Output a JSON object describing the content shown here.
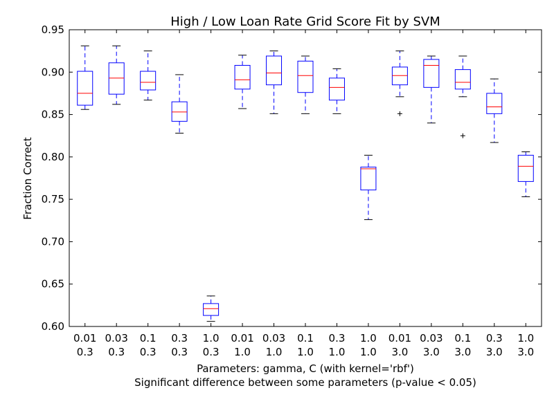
{
  "chart_data": {
    "type": "box",
    "title": "High / Low Loan Rate Grid Score Fit by SVM",
    "xlabel": "Parameters: gamma, C (with kernel='rbf')",
    "note": "Significant difference between some parameters (p-value < 0.05)",
    "ylabel": "Fraction Correct",
    "ylim": [
      0.6,
      0.95
    ],
    "yticks": [
      "0.60",
      "0.65",
      "0.70",
      "0.75",
      "0.80",
      "0.85",
      "0.90",
      "0.95"
    ],
    "colors": {
      "box": "#0000ff",
      "median": "#ff0000",
      "flier": "#000000"
    },
    "categories": [
      {
        "gamma": "0.01",
        "C": "0.3",
        "whislo": 0.856,
        "q1": 0.861,
        "med": 0.875,
        "q3": 0.901,
        "whishi": 0.931,
        "fliers": []
      },
      {
        "gamma": "0.03",
        "C": "0.3",
        "whislo": 0.862,
        "q1": 0.874,
        "med": 0.893,
        "q3": 0.911,
        "whishi": 0.931,
        "fliers": []
      },
      {
        "gamma": "0.1",
        "C": "0.3",
        "whislo": 0.867,
        "q1": 0.879,
        "med": 0.888,
        "q3": 0.901,
        "whishi": 0.925,
        "fliers": []
      },
      {
        "gamma": "0.3",
        "C": "0.3",
        "whislo": 0.828,
        "q1": 0.842,
        "med": 0.853,
        "q3": 0.865,
        "whishi": 0.897,
        "fliers": []
      },
      {
        "gamma": "1.0",
        "C": "0.3",
        "whislo": 0.606,
        "q1": 0.613,
        "med": 0.621,
        "q3": 0.627,
        "whishi": 0.636,
        "fliers": []
      },
      {
        "gamma": "0.01",
        "C": "1.0",
        "whislo": 0.857,
        "q1": 0.88,
        "med": 0.891,
        "q3": 0.908,
        "whishi": 0.92,
        "fliers": []
      },
      {
        "gamma": "0.03",
        "C": "1.0",
        "whislo": 0.851,
        "q1": 0.885,
        "med": 0.899,
        "q3": 0.919,
        "whishi": 0.925,
        "fliers": []
      },
      {
        "gamma": "0.1",
        "C": "1.0",
        "whislo": 0.851,
        "q1": 0.876,
        "med": 0.896,
        "q3": 0.913,
        "whishi": 0.919,
        "fliers": []
      },
      {
        "gamma": "0.3",
        "C": "1.0",
        "whislo": 0.851,
        "q1": 0.867,
        "med": 0.882,
        "q3": 0.893,
        "whishi": 0.904,
        "fliers": []
      },
      {
        "gamma": "1.0",
        "C": "1.0",
        "whislo": 0.726,
        "q1": 0.761,
        "med": 0.786,
        "q3": 0.788,
        "whishi": 0.802,
        "fliers": []
      },
      {
        "gamma": "0.01",
        "C": "3.0",
        "whislo": 0.871,
        "q1": 0.885,
        "med": 0.896,
        "q3": 0.906,
        "whishi": 0.925,
        "fliers": [
          0.851
        ]
      },
      {
        "gamma": "0.03",
        "C": "3.0",
        "whislo": 0.84,
        "q1": 0.882,
        "med": 0.908,
        "q3": 0.915,
        "whishi": 0.919,
        "fliers": []
      },
      {
        "gamma": "0.1",
        "C": "3.0",
        "whislo": 0.871,
        "q1": 0.88,
        "med": 0.888,
        "q3": 0.903,
        "whishi": 0.919,
        "fliers": [
          0.825
        ]
      },
      {
        "gamma": "0.3",
        "C": "3.0",
        "whislo": 0.817,
        "q1": 0.851,
        "med": 0.859,
        "q3": 0.875,
        "whishi": 0.892,
        "fliers": []
      },
      {
        "gamma": "1.0",
        "C": "3.0",
        "whislo": 0.753,
        "q1": 0.771,
        "med": 0.789,
        "q3": 0.802,
        "whishi": 0.806,
        "fliers": []
      }
    ]
  }
}
